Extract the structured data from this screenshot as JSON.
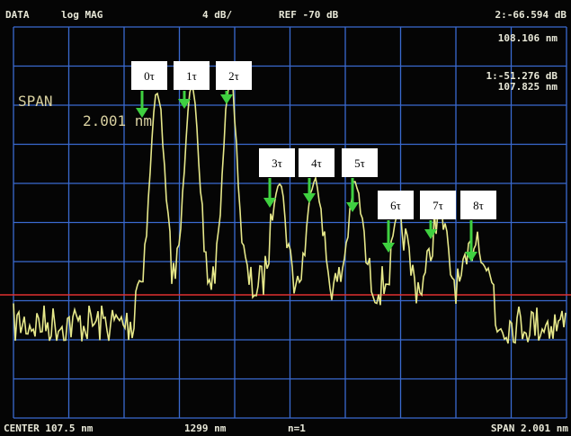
{
  "header": {
    "mode": "DATA",
    "format": "log MAG",
    "scale": "4 dB/",
    "reference": "REF -70 dB",
    "marker2_value": "2:-66.594 dB",
    "marker2_position": "108.106 nm"
  },
  "marker1": {
    "value": "1:-51.276 dB",
    "position": "107.825 nm"
  },
  "span_display": {
    "label": "SPAN",
    "value": "2.001 nm"
  },
  "peaks": {
    "labels": [
      "0τ",
      "1τ",
      "2τ",
      "3τ",
      "4τ",
      "5τ",
      "6τ",
      "7τ",
      "8τ"
    ]
  },
  "footer": {
    "center": "CENTER 107.5 nm",
    "resolution": "1299 nm",
    "count": "n=1",
    "span": "SPAN 2.001 nm"
  }
}
